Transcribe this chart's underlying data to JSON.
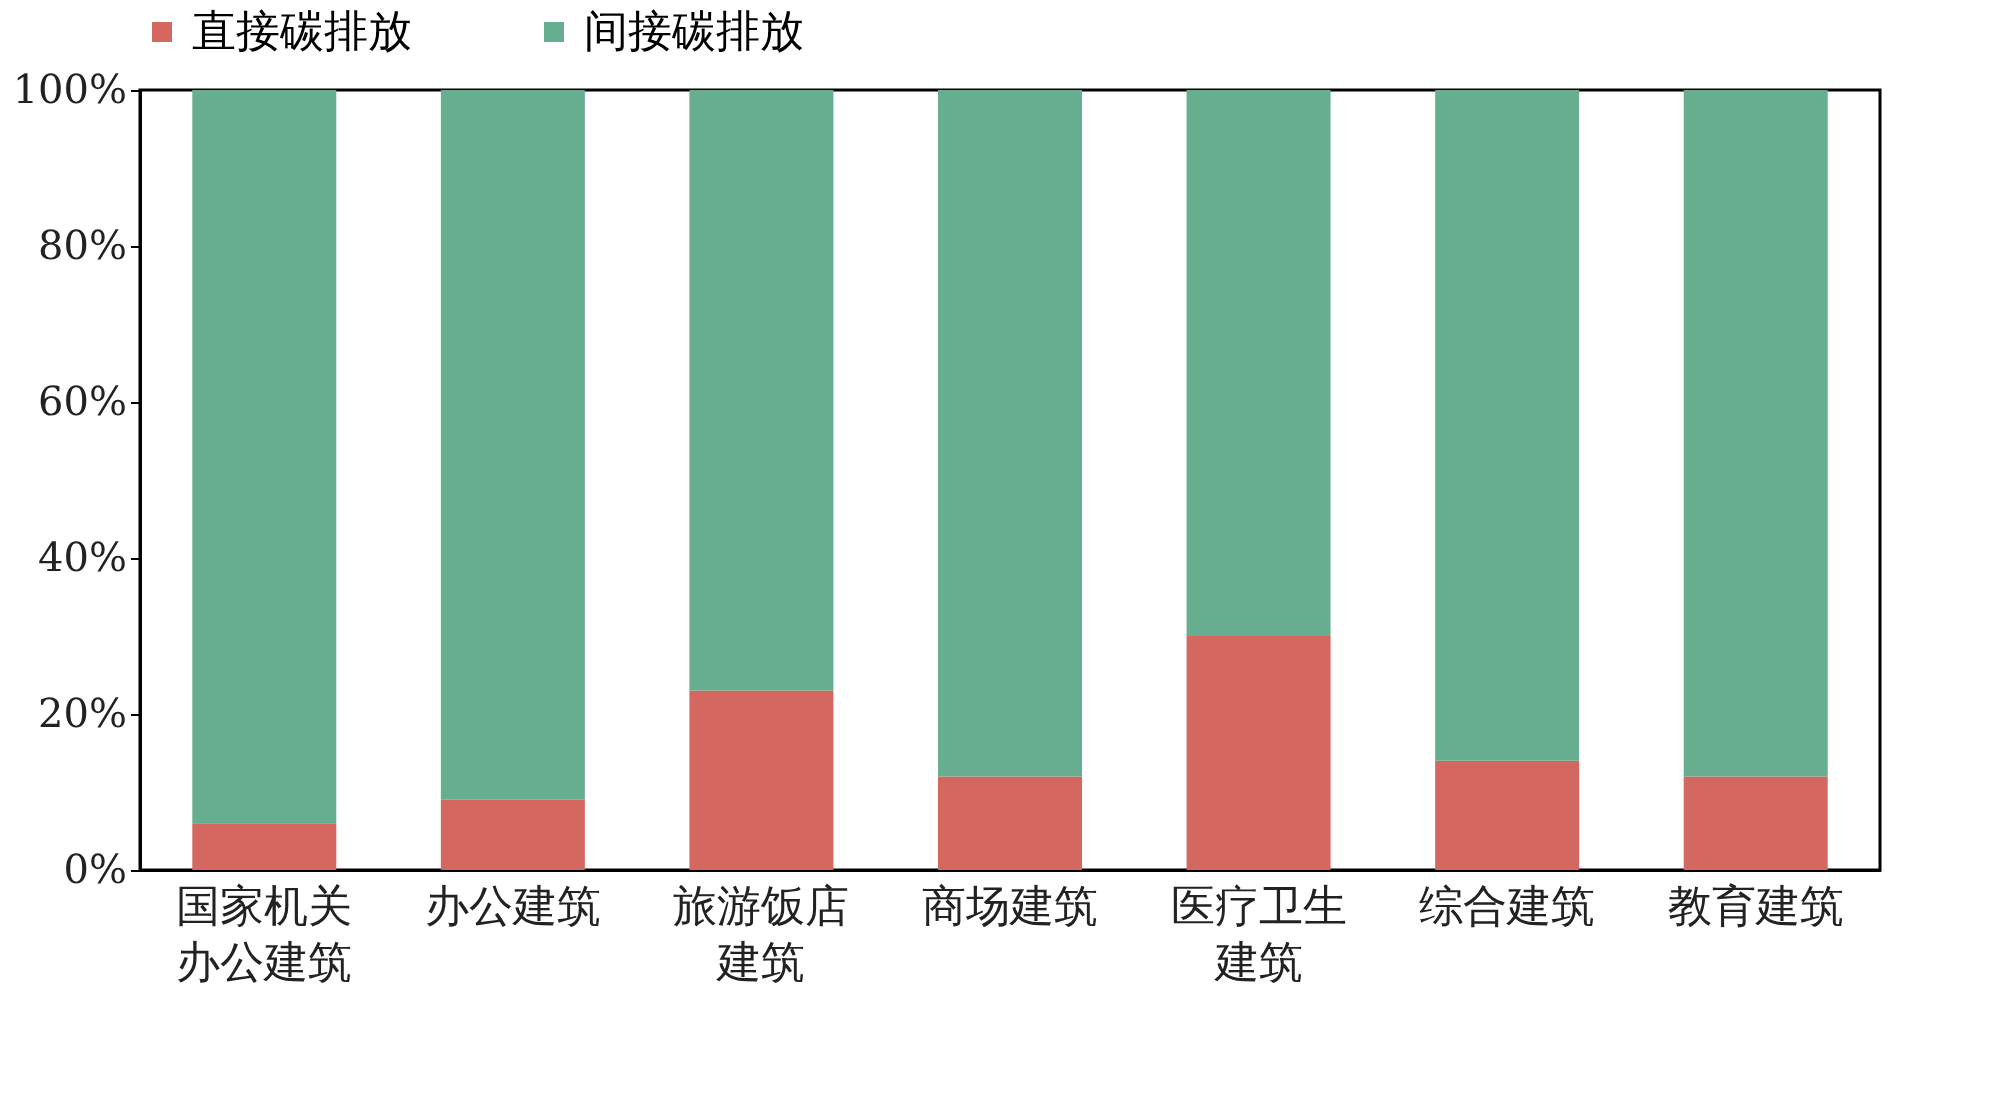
{
  "chart_data": {
    "type": "bar",
    "stacked": true,
    "categories": [
      "国家机关办公建筑",
      "办公建筑",
      "旅游饭店建筑",
      "商场建筑",
      "医疗卫生建筑",
      "综合建筑",
      "教育建筑"
    ],
    "series": [
      {
        "name": "直接碳排放",
        "color": "#d4675f",
        "values": [
          6,
          9,
          23,
          12,
          30,
          14,
          12
        ]
      },
      {
        "name": "间接碳排放",
        "color": "#66ae8f",
        "values": [
          94,
          91,
          77,
          88,
          70,
          86,
          88
        ]
      }
    ],
    "ylim": [
      0,
      100
    ],
    "yticks": [
      {
        "value": 0,
        "label": "0%"
      },
      {
        "value": 20,
        "label": "20%"
      },
      {
        "value": 40,
        "label": "40%"
      },
      {
        "value": 60,
        "label": "60%"
      },
      {
        "value": 80,
        "label": "80%"
      },
      {
        "value": 100,
        "label": "100%"
      }
    ],
    "grid": false,
    "legend": "top"
  }
}
